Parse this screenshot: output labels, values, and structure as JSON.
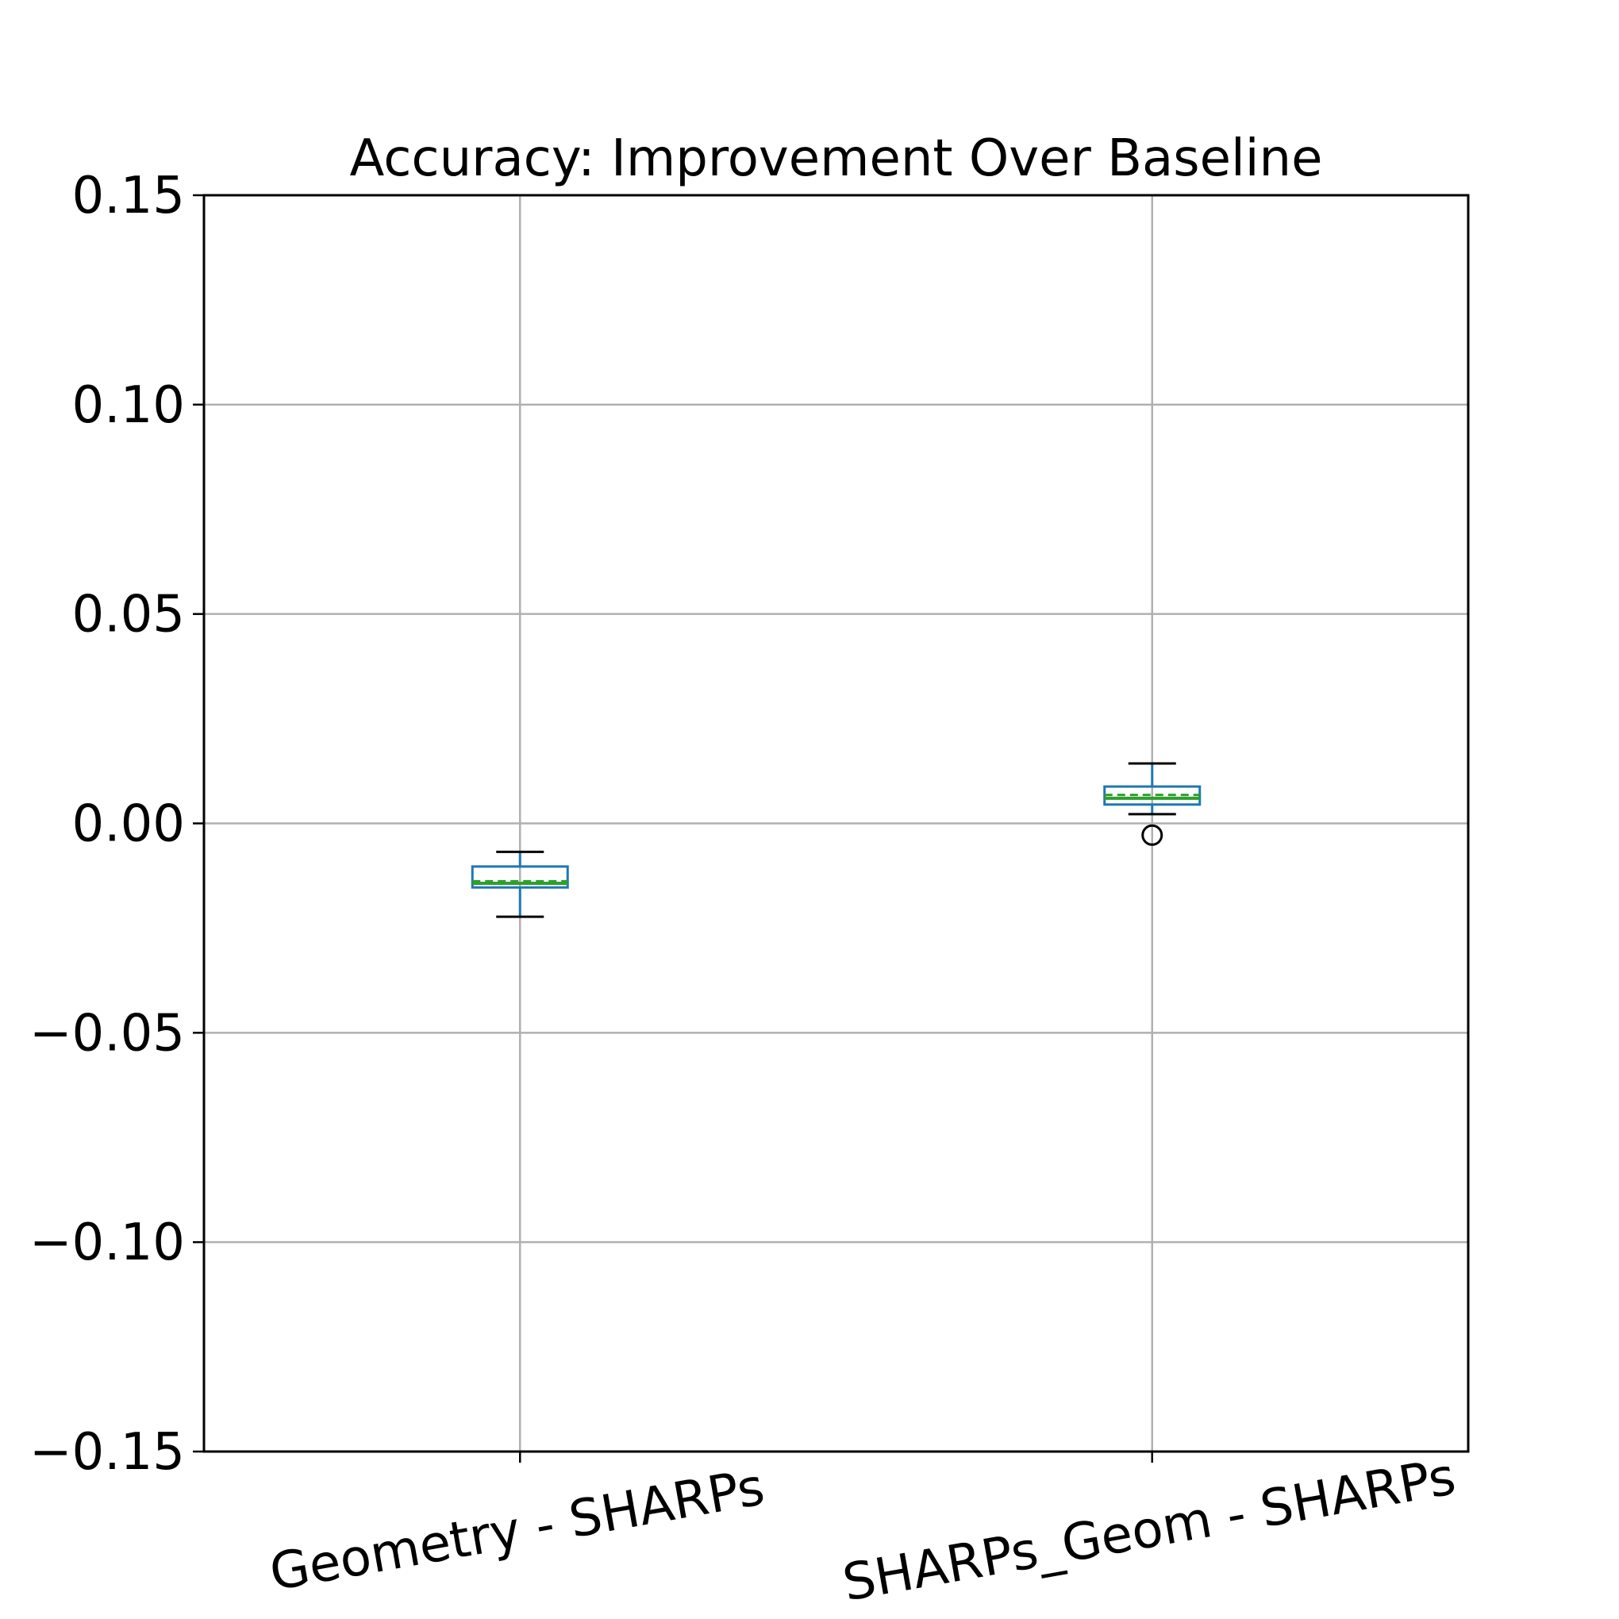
{
  "chart_data": {
    "type": "box",
    "title": "Accuracy: Improvement Over Baseline",
    "xlabel": "",
    "ylabel": "",
    "ylim": [
      -0.15,
      0.15
    ],
    "yticks": [
      -0.15,
      -0.1,
      -0.05,
      0.0,
      0.05,
      0.1,
      0.15
    ],
    "ytick_labels": [
      "−0.15",
      "−0.10",
      "−0.05",
      "0.00",
      "0.05",
      "0.10",
      "0.15"
    ],
    "grid": true,
    "categories": [
      "Geometry - SHARPs",
      "SHARPs_Geom - SHARPs"
    ],
    "boxes": [
      {
        "label": "Geometry - SHARPs",
        "whisker_low": -0.0223,
        "q1": -0.0153,
        "median": -0.0143,
        "mean": -0.0138,
        "q3": -0.0103,
        "whisker_high": -0.0068,
        "outliers": []
      },
      {
        "label": "SHARPs_Geom - SHARPs",
        "whisker_low": 0.0022,
        "q1": 0.0045,
        "median": 0.006,
        "mean": 0.0068,
        "q3": 0.0088,
        "whisker_high": 0.0143,
        "outliers": [
          -0.0028
        ]
      }
    ],
    "colors": {
      "box": "#1f77b4",
      "median": "#2ca02c",
      "mean": "#2ca02c",
      "whisker_cap": "#000000",
      "grid": "#b0b0b0",
      "axes": "#000000"
    }
  }
}
